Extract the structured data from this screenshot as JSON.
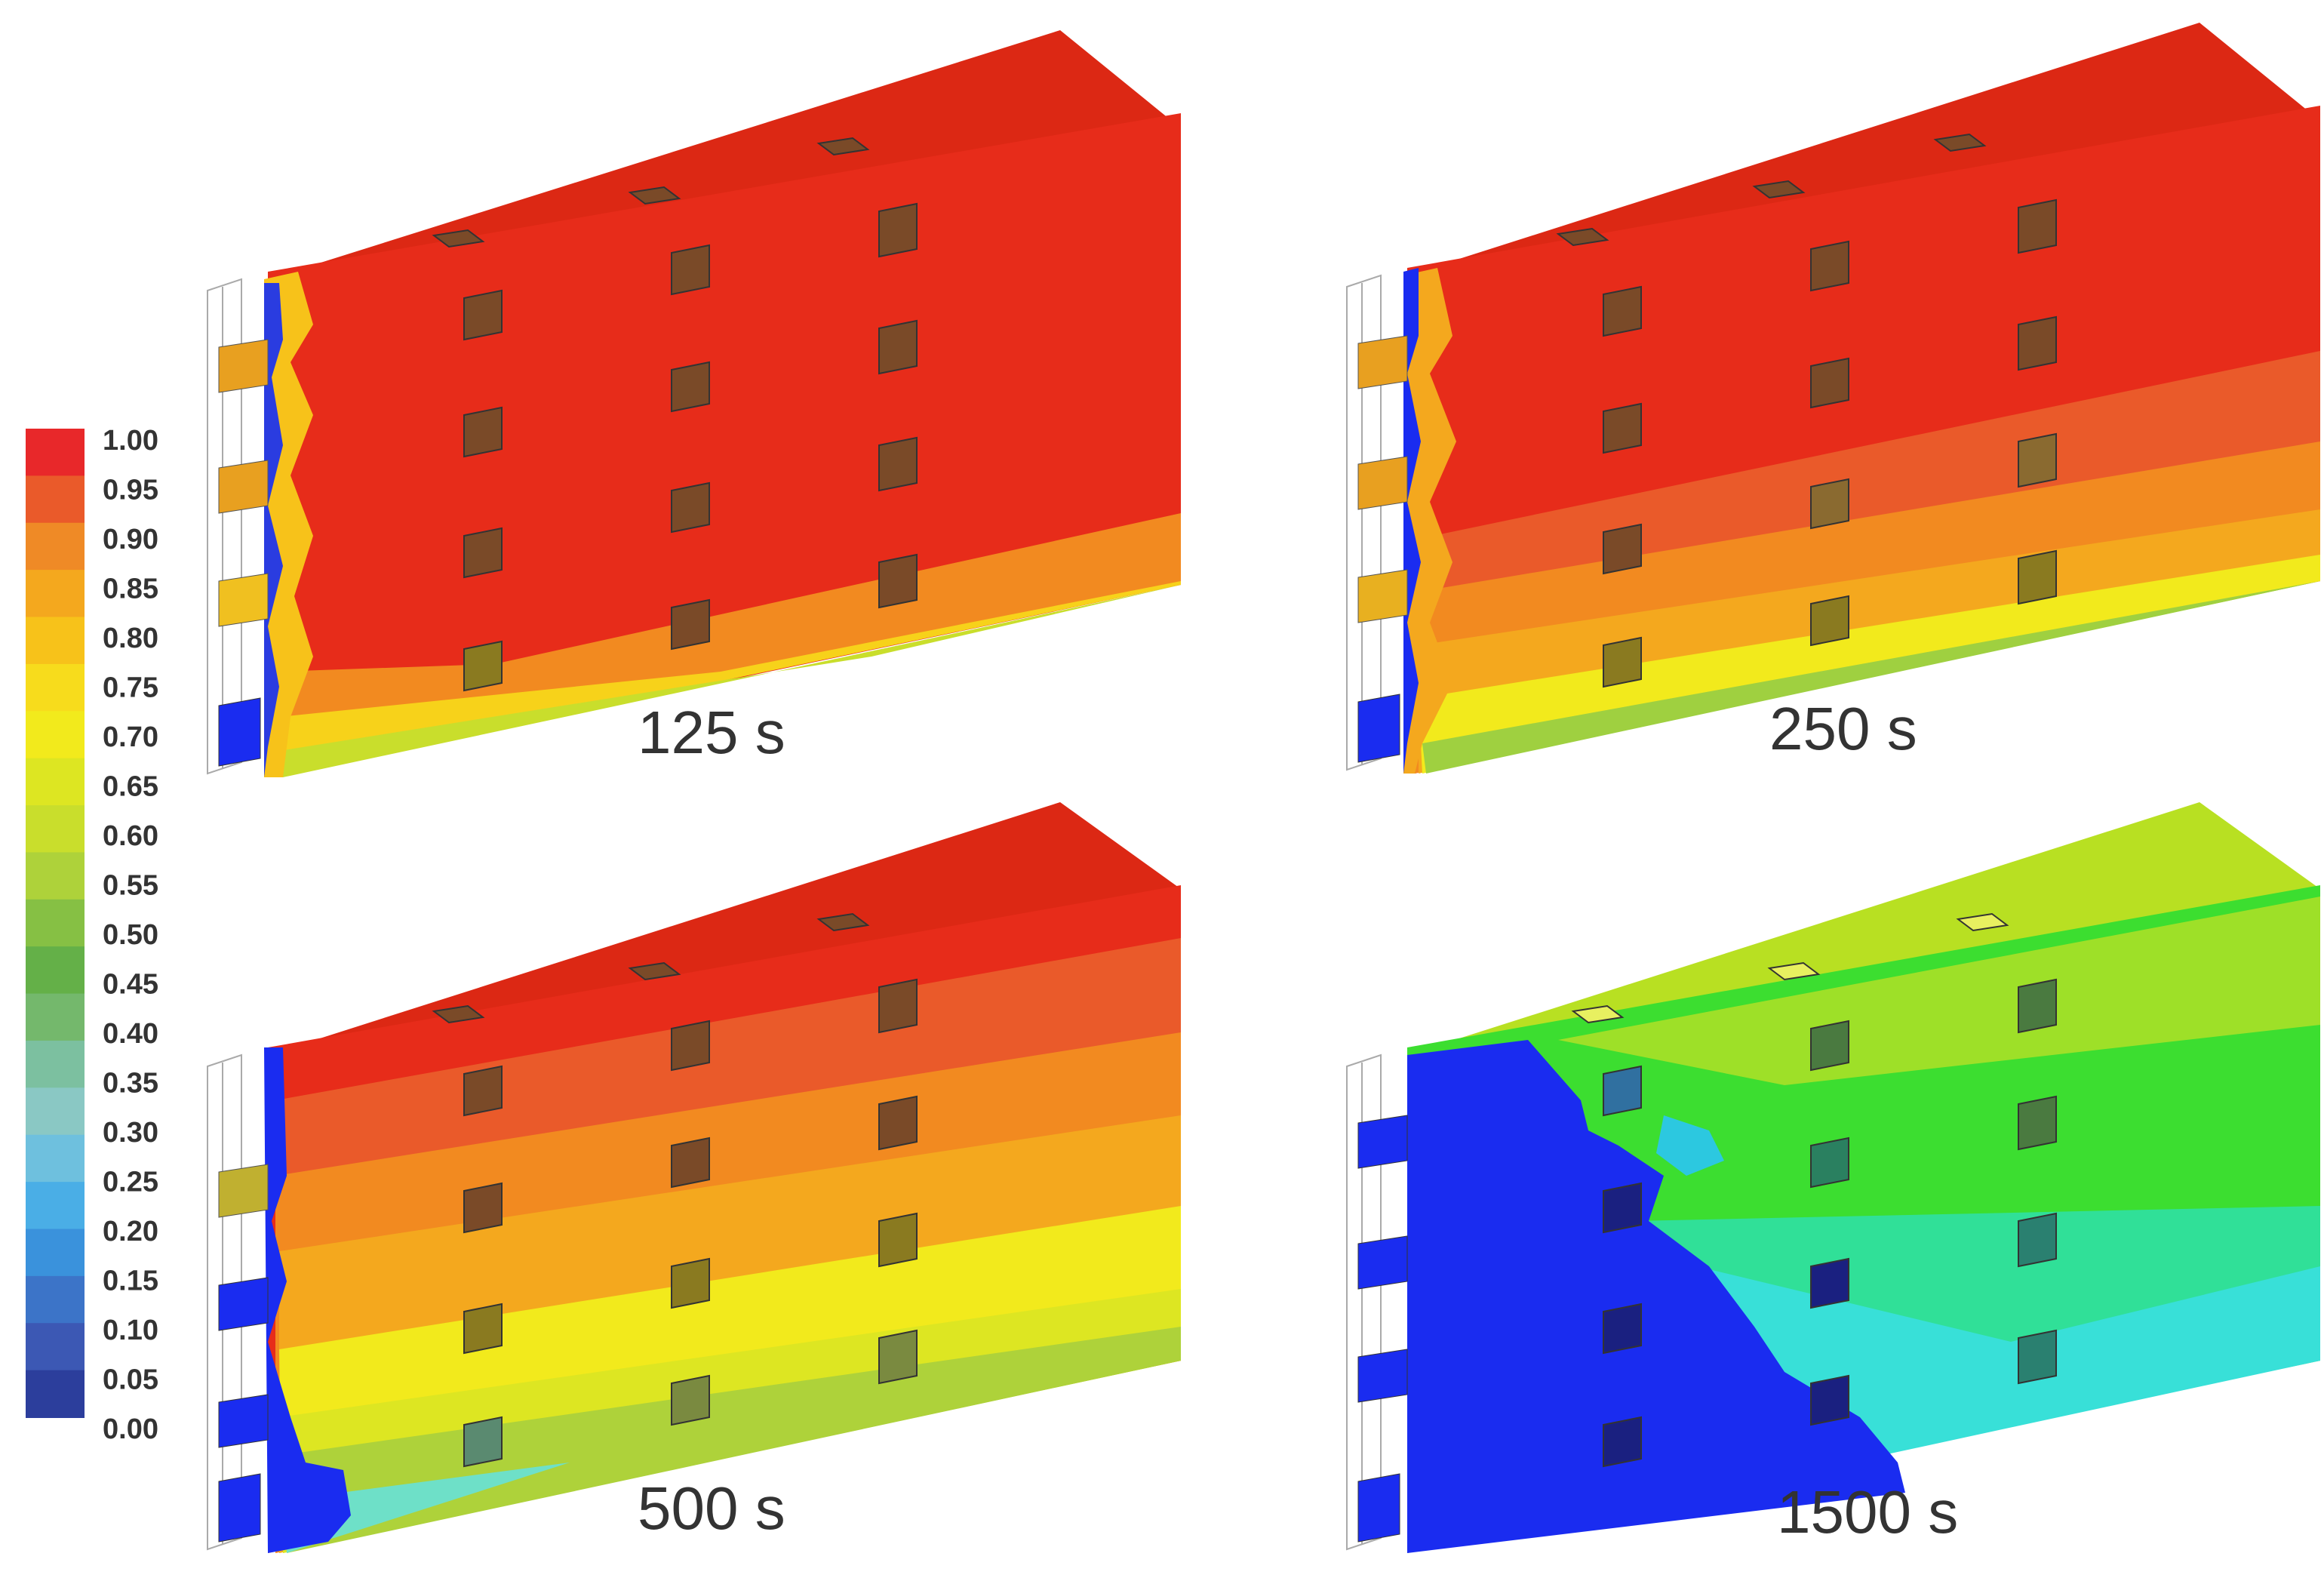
{
  "colorbar": {
    "ticks": [
      "1.00",
      "0.95",
      "0.90",
      "0.85",
      "0.80",
      "0.75",
      "0.70",
      "0.65",
      "0.60",
      "0.55",
      "0.50",
      "0.45",
      "0.40",
      "0.35",
      "0.30",
      "0.25",
      "0.20",
      "0.15",
      "0.10",
      "0.05",
      "0.00"
    ],
    "colors": [
      "#e8282a",
      "#ea5a2a",
      "#ef8a26",
      "#f4a81e",
      "#f7c21a",
      "#f7dc1c",
      "#f2ea1c",
      "#dde622",
      "#c9de2c",
      "#aed23a",
      "#86c044",
      "#64b048",
      "#74b86c",
      "#7cc0a0",
      "#8ac8c4",
      "#6ec0de",
      "#4aaee6",
      "#3a92dc",
      "#3c74c8",
      "#3c58b4",
      "#2c3e9c"
    ]
  },
  "panels": [
    {
      "label": "125 s",
      "colors": {
        "wall": "#e62a1c",
        "top": "#d92616",
        "side": "#e62a1c"
      }
    },
    {
      "label": "250 s",
      "colors": {
        "wall": "#e62a1c",
        "top": "#d92616",
        "side": "#e62a1c"
      }
    },
    {
      "label": "500 s",
      "colors": {
        "wall": "#f4a81e",
        "top": "#d92616",
        "side": "#e62a1c"
      }
    },
    {
      "label": "1500 s",
      "colors": {
        "wall": "#2ed820",
        "top": "#b4e020",
        "side": "#1a2cf0"
      }
    }
  ]
}
